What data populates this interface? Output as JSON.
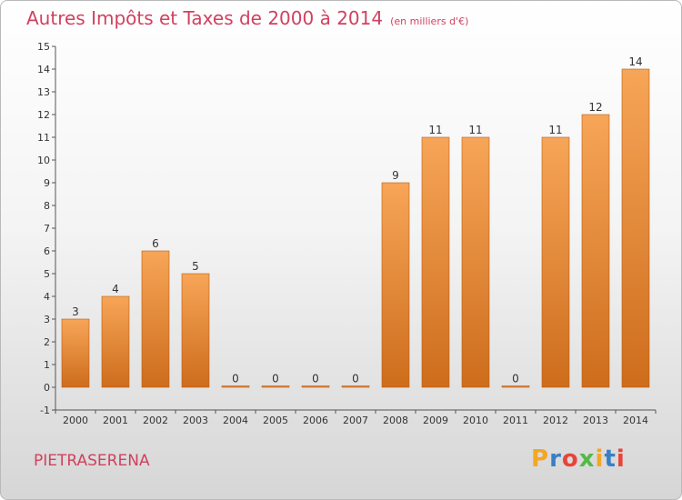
{
  "header": {
    "title": "Autres Impôts et Taxes de 2000 à 2014",
    "unit": "(en milliers d'€)"
  },
  "footer": {
    "commune": "PIETRASERENA",
    "logo_text": "Proxiti",
    "logo_colors": [
      "#f5a623",
      "#3a7fc4",
      "#e8443a",
      "#55b947",
      "#f5a623",
      "#3a7fc4",
      "#e8443a"
    ]
  },
  "colors": {
    "title": "#d1415f",
    "bar_top": "#f7a558",
    "bar_bottom": "#cd6d1c",
    "bar_edge": "#b85e14"
  },
  "chart_data": {
    "type": "bar",
    "categories": [
      "2000",
      "2001",
      "2002",
      "2003",
      "2004",
      "2005",
      "2006",
      "2007",
      "2008",
      "2009",
      "2010",
      "2011",
      "2012",
      "2013",
      "2014"
    ],
    "values": [
      3,
      4,
      6,
      5,
      0,
      0,
      0,
      0,
      9,
      11,
      11,
      0,
      11,
      12,
      14
    ],
    "data_labels": [
      "3",
      "4",
      "6",
      "5",
      "0",
      "0",
      "0",
      "0",
      "9",
      "11",
      "11",
      "0",
      "11",
      "12",
      "14"
    ],
    "yticks": [
      "-1",
      "0",
      "1",
      "2",
      "3",
      "4",
      "5",
      "6",
      "7",
      "8",
      "9",
      "10",
      "11",
      "12",
      "13",
      "14",
      "15"
    ],
    "ylim": [
      -1,
      15
    ],
    "grid": false,
    "legend": "none"
  }
}
